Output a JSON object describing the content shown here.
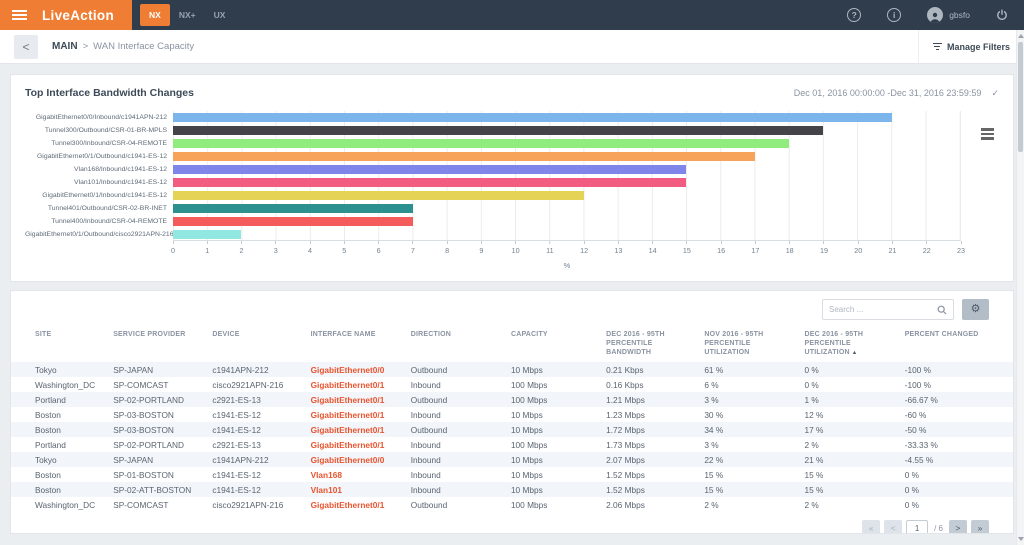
{
  "topbar": {
    "logo": "LiveAction",
    "tabs": [
      {
        "label": "NX",
        "active": true
      },
      {
        "label": "NX+",
        "active": false
      },
      {
        "label": "UX",
        "active": false
      }
    ],
    "help_label": "?",
    "info_label": "i",
    "username": "gbsfo",
    "accent_color": "#ef7d33",
    "bar_color": "#2f3d4d"
  },
  "breadcrumb": {
    "back_icon": "<",
    "root": "MAIN",
    "separator": ">",
    "page": "WAN Interface Capacity"
  },
  "manage_filters": {
    "label": "Manage Filters"
  },
  "panel": {
    "title": "Top Interface Bandwidth Changes",
    "date_range": "Dec 01, 2016 00:00:00 -Dec 31, 2016 23:59:59",
    "check_icon": "✓"
  },
  "chart_data": {
    "type": "bar",
    "orientation": "horizontal",
    "title": "Top Interface Bandwidth Changes",
    "categories": [
      "GigabitEthernet0/0/Inbound/c1941APN-212",
      "Tunnel300/Outbound/CSR-01-BR-MPLS",
      "Tunnel300/Inbound/CSR-04-REMOTE",
      "GigabitEthernet0/1/Outbound/c1941-ES-12",
      "Vlan168/Inbound/c1941-ES-12",
      "Vlan101/Inbound/c1941-ES-12",
      "GigabitEthernet0/1/Inbound/c1941-ES-12",
      "Tunnel401/Outbound/CSR-02-BR-INET",
      "Tunnel400/Inbound/CSR-04-REMOTE",
      "GigabitEthernet0/1/Outbound/cisco2921APN-216"
    ],
    "values": [
      21,
      19,
      18,
      17,
      15,
      15,
      12,
      7,
      7,
      2
    ],
    "colors": [
      "#7cb5ec",
      "#434348",
      "#90ed7d",
      "#f7a35c",
      "#8085e9",
      "#f15c80",
      "#e4d354",
      "#2b908f",
      "#f45b5b",
      "#91e8e1"
    ],
    "xlabel": "%",
    "xlim": [
      0,
      23
    ],
    "xticks": [
      0,
      1,
      2,
      3,
      4,
      5,
      6,
      7,
      8,
      9,
      10,
      11,
      12,
      13,
      14,
      15,
      16,
      17,
      18,
      19,
      20,
      21,
      22,
      23
    ],
    "grid": true,
    "legend": "none"
  },
  "table": {
    "search_placeholder": "Search ...",
    "gear_icon": "⚙",
    "columns": [
      "SITE",
      "SERVICE PROVIDER",
      "DEVICE",
      "INTERFACE NAME",
      "DIRECTION",
      "CAPACITY",
      "DEC 2016 - 95TH PERCENTILE BANDWIDTH",
      "NOV 2016 - 95TH PERCENTILE UTILIZATION",
      "DEC 2016 - 95TH PERCENTILE UTILIZATION",
      "PERCENT CHANGED"
    ],
    "sort_column_index": 9,
    "sort_arrow": "▲",
    "rows": [
      [
        "Tokyo",
        "SP-JAPAN",
        "c1941APN-212",
        "GigabitEthernet0/0",
        "Outbound",
        "10 Mbps",
        "0.21 Kbps",
        "61 %",
        "0 %",
        "-100 %"
      ],
      [
        "Washington_DC",
        "SP-COMCAST",
        "cisco2921APN-216",
        "GigabitEthernet0/1",
        "Inbound",
        "100 Mbps",
        "0.16 Kbps",
        "6 %",
        "0 %",
        "-100 %"
      ],
      [
        "Portland",
        "SP-02-PORTLAND",
        "c2921-ES-13",
        "GigabitEthernet0/1",
        "Outbound",
        "100 Mbps",
        "1.21 Mbps",
        "3 %",
        "1 %",
        "-66.67 %"
      ],
      [
        "Boston",
        "SP-03-BOSTON",
        "c1941-ES-12",
        "GigabitEthernet0/1",
        "Inbound",
        "10 Mbps",
        "1.23 Mbps",
        "30 %",
        "12 %",
        "-60 %"
      ],
      [
        "Boston",
        "SP-03-BOSTON",
        "c1941-ES-12",
        "GigabitEthernet0/1",
        "Outbound",
        "10 Mbps",
        "1.72 Mbps",
        "34 %",
        "17 %",
        "-50 %"
      ],
      [
        "Portland",
        "SP-02-PORTLAND",
        "c2921-ES-13",
        "GigabitEthernet0/1",
        "Inbound",
        "100 Mbps",
        "1.73 Mbps",
        "3 %",
        "2 %",
        "-33.33 %"
      ],
      [
        "Tokyo",
        "SP-JAPAN",
        "c1941APN-212",
        "GigabitEthernet0/0",
        "Inbound",
        "10 Mbps",
        "2.07 Mbps",
        "22 %",
        "21 %",
        "-4.55 %"
      ],
      [
        "Boston",
        "SP-01-BOSTON",
        "c1941-ES-12",
        "Vlan168",
        "Inbound",
        "10 Mbps",
        "1.52 Mbps",
        "15 %",
        "15 %",
        "0 %"
      ],
      [
        "Boston",
        "SP-02-ATT-BOSTON",
        "c1941-ES-12",
        "Vlan101",
        "Inbound",
        "10 Mbps",
        "1.52 Mbps",
        "15 %",
        "15 %",
        "0 %"
      ],
      [
        "Washington_DC",
        "SP-COMCAST",
        "cisco2921APN-216",
        "GigabitEthernet0/1",
        "Outbound",
        "100 Mbps",
        "2.06 Mbps",
        "2 %",
        "2 %",
        "0 %"
      ]
    ],
    "pagination": {
      "first_label": "«",
      "prev_label": "<",
      "current": "1",
      "total_label": "/ 6",
      "next_label": ">",
      "last_label": "»"
    }
  }
}
